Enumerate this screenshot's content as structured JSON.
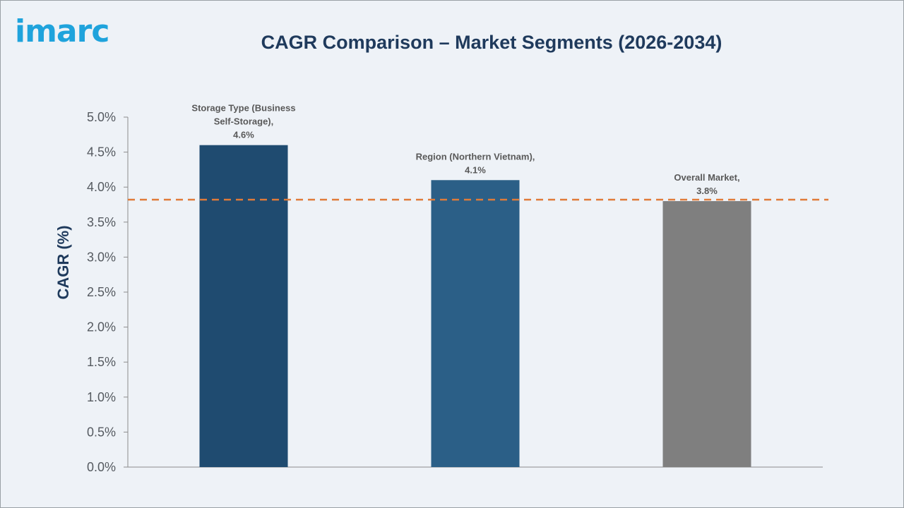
{
  "logo_text": "imarc",
  "chart_data": {
    "type": "bar",
    "title": "CAGR Comparison – Market Segments (2026-2034)",
    "ylabel": "CAGR (%)",
    "xlabel": "",
    "ylim": [
      0,
      5.0
    ],
    "ytick_labels": [
      "0.0%",
      "0.5%",
      "1.0%",
      "1.5%",
      "2.0%",
      "2.5%",
      "3.0%",
      "3.5%",
      "4.0%",
      "4.5%",
      "5.0%"
    ],
    "categories": [
      "Storage Type (Business Self-Storage)",
      "Region (Northern Vietnam)",
      "Overall Market"
    ],
    "values": [
      4.6,
      4.1,
      3.8
    ],
    "data_labels": [
      [
        "Storage Type (Business",
        "Self-Storage),",
        "4.6%"
      ],
      [
        "Region (Northern Vietnam),",
        "4.1%"
      ],
      [
        "Overall Market,",
        "3.8%"
      ]
    ],
    "colors": [
      "#1f4b70",
      "#2b5f87",
      "#7f7f7f"
    ],
    "reference_line": {
      "value": 3.82,
      "style": "dashed",
      "color": "#e07b39"
    },
    "grid": false,
    "legend": "none"
  }
}
